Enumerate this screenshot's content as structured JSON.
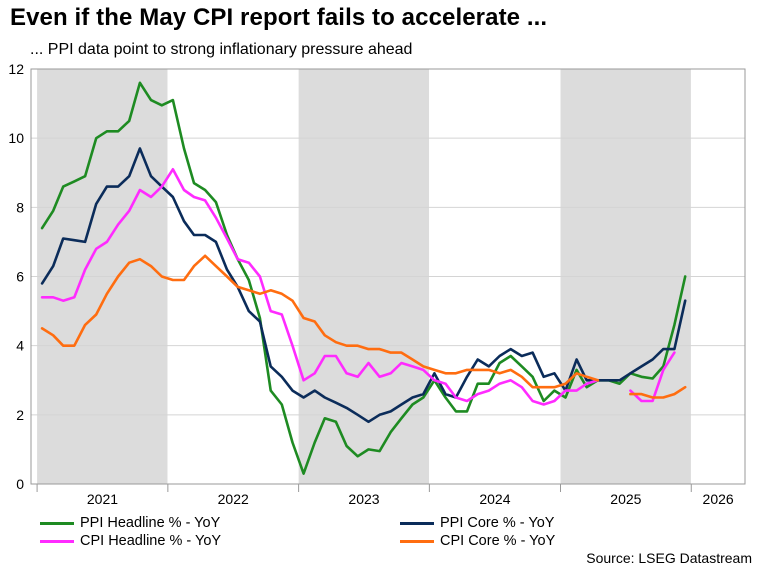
{
  "title": "Even if the May CPI report fails to accelerate ...",
  "subtitle": "... PPI data point to strong inflationary pressure ahead",
  "source": "Source: LSEG Datastream",
  "colors": {
    "ppi_headline": "#1e8b22",
    "ppi_core": "#0b2c5a",
    "cpi_headline": "#ff2bff",
    "cpi_core": "#ff6d10",
    "shade": "#dcdcdc",
    "grid": "#d4d4d4"
  },
  "chart_data": {
    "type": "line",
    "title": "Even if the May CPI report fails to accelerate ...",
    "subtitle": "... PPI data point to strong inflationary pressure ahead",
    "x_unit": "month",
    "x_start": "2021-01",
    "xlim": [
      "2020-12-15",
      "2026-05-31"
    ],
    "x_tick_labels": [
      "2021",
      "2022",
      "2023",
      "2024",
      "2025",
      "2026"
    ],
    "ylim": [
      0,
      12
    ],
    "y_ticks": [
      0,
      2,
      4,
      6,
      8,
      10,
      12
    ],
    "grid": "horizontal",
    "legend_placement": "bottom",
    "shaded_periods": [
      [
        "2021-01-01",
        "2021-12-31"
      ],
      [
        "2023-01-01",
        "2023-12-31"
      ],
      [
        "2025-01-01",
        "2025-12-31"
      ]
    ],
    "series": [
      {
        "name": "PPI Headline % - YoY",
        "start": "2021-01",
        "values": [
          7.4,
          7.9,
          8.6,
          8.75,
          8.9,
          10.0,
          10.2,
          10.2,
          10.5,
          11.6,
          11.1,
          10.95,
          11.1,
          9.7,
          8.7,
          8.5,
          8.15,
          7.2,
          6.5,
          5.9,
          4.8,
          2.7,
          2.3,
          1.2,
          0.3,
          1.2,
          1.9,
          1.8,
          1.1,
          0.8,
          1.0,
          0.95,
          1.5,
          1.9,
          2.3,
          2.5,
          3.0,
          2.5,
          2.1,
          2.1,
          2.9,
          2.9,
          3.5,
          3.7,
          3.4,
          3.1,
          2.4,
          2.7,
          2.5,
          3.3,
          2.8,
          3.0,
          3.0,
          2.9,
          3.2,
          3.1,
          3.05,
          3.4,
          4.6,
          6.0
        ]
      },
      {
        "name": "PPI Core % - YoY",
        "start": "2021-01",
        "values": [
          5.8,
          6.3,
          7.1,
          7.05,
          7.0,
          8.1,
          8.6,
          8.6,
          8.9,
          9.7,
          8.9,
          8.6,
          8.3,
          7.6,
          7.2,
          7.2,
          7.0,
          6.2,
          5.7,
          5.0,
          4.7,
          3.4,
          3.1,
          2.7,
          2.5,
          2.7,
          2.5,
          2.35,
          2.2,
          2.0,
          1.8,
          2.0,
          2.1,
          2.3,
          2.5,
          2.6,
          3.2,
          2.6,
          2.5,
          3.1,
          3.6,
          3.4,
          3.7,
          3.9,
          3.7,
          3.8,
          3.1,
          3.2,
          2.7,
          3.6,
          3.0,
          3.0,
          3.0,
          3.0,
          3.2,
          3.4,
          3.6,
          3.9,
          3.9,
          5.3
        ]
      },
      {
        "name": "CPI Headline % - YoY",
        "start": "2021-01",
        "values": [
          5.4,
          5.4,
          5.3,
          5.4,
          6.2,
          6.8,
          7.0,
          7.5,
          7.9,
          8.5,
          8.3,
          8.6,
          9.1,
          8.5,
          8.3,
          8.2,
          7.7,
          7.1,
          6.5,
          6.4,
          6.0,
          5.0,
          4.9,
          4.0,
          3.0,
          3.2,
          3.7,
          3.7,
          3.2,
          3.1,
          3.5,
          3.1,
          3.2,
          3.5,
          3.4,
          3.3,
          3.0,
          2.9,
          2.5,
          2.4,
          2.6,
          2.7,
          2.9,
          3.0,
          2.8,
          2.4,
          2.3,
          2.4,
          2.7,
          2.7,
          2.9,
          3.0,
          null,
          null,
          2.7,
          2.4,
          2.4,
          3.3,
          3.8
        ]
      },
      {
        "name": "CPI Core % - YoY",
        "start": "2021-01",
        "values": [
          4.5,
          4.3,
          4.0,
          4.0,
          4.6,
          4.9,
          5.5,
          6.0,
          6.4,
          6.5,
          6.3,
          6.0,
          5.9,
          5.9,
          6.3,
          6.6,
          6.3,
          6.0,
          5.7,
          5.6,
          5.5,
          5.6,
          5.5,
          5.3,
          4.8,
          4.7,
          4.3,
          4.1,
          4.0,
          4.0,
          3.9,
          3.9,
          3.8,
          3.8,
          3.6,
          3.4,
          3.3,
          3.2,
          3.2,
          3.3,
          3.3,
          3.3,
          3.2,
          3.3,
          3.1,
          2.8,
          2.8,
          2.8,
          2.9,
          3.2,
          3.1,
          3.0,
          null,
          null,
          2.6,
          2.6,
          2.5,
          2.5,
          2.6,
          2.8
        ]
      }
    ]
  }
}
